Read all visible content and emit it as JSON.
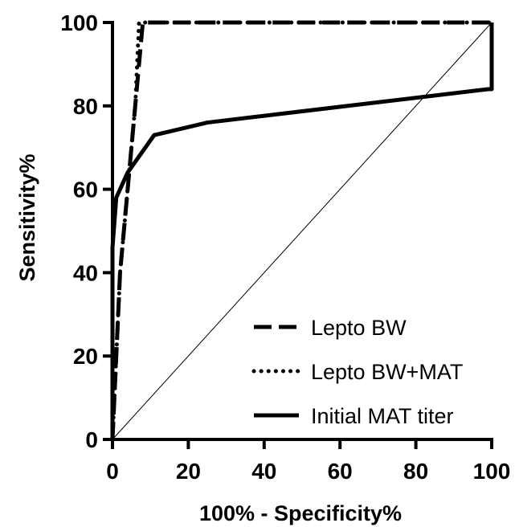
{
  "chart_data": {
    "type": "line",
    "title": "",
    "xlabel": "100% - Specificity%",
    "ylabel": "Sensitivity%",
    "xlim": [
      0,
      100
    ],
    "ylim": [
      0,
      100
    ],
    "xticks": [
      0,
      20,
      40,
      60,
      80,
      100
    ],
    "yticks": [
      0,
      20,
      40,
      60,
      80,
      100
    ],
    "grid": false,
    "legend_position": "bottom-right",
    "reference_line": {
      "x": [
        0,
        100
      ],
      "y": [
        0,
        100
      ],
      "style": "thin-solid"
    },
    "series": [
      {
        "name": "Lepto BW",
        "style": "dashed",
        "color": "#000000",
        "x": [
          0,
          1,
          2,
          4,
          6,
          8,
          100
        ],
        "y": [
          0,
          20,
          40,
          60,
          80,
          100,
          100
        ]
      },
      {
        "name": "Lepto BW+MAT",
        "style": "dotted",
        "color": "#000000",
        "x": [
          0,
          1,
          2,
          4,
          6,
          7,
          100
        ],
        "y": [
          0,
          20,
          40,
          60,
          80,
          100,
          100
        ]
      },
      {
        "name": "Initial MAT titer",
        "style": "solid",
        "color": "#000000",
        "x": [
          0,
          0,
          1,
          4,
          11,
          25,
          99,
          100,
          100
        ],
        "y": [
          0,
          46,
          58,
          64,
          73,
          76,
          84,
          84,
          100
        ]
      }
    ]
  }
}
